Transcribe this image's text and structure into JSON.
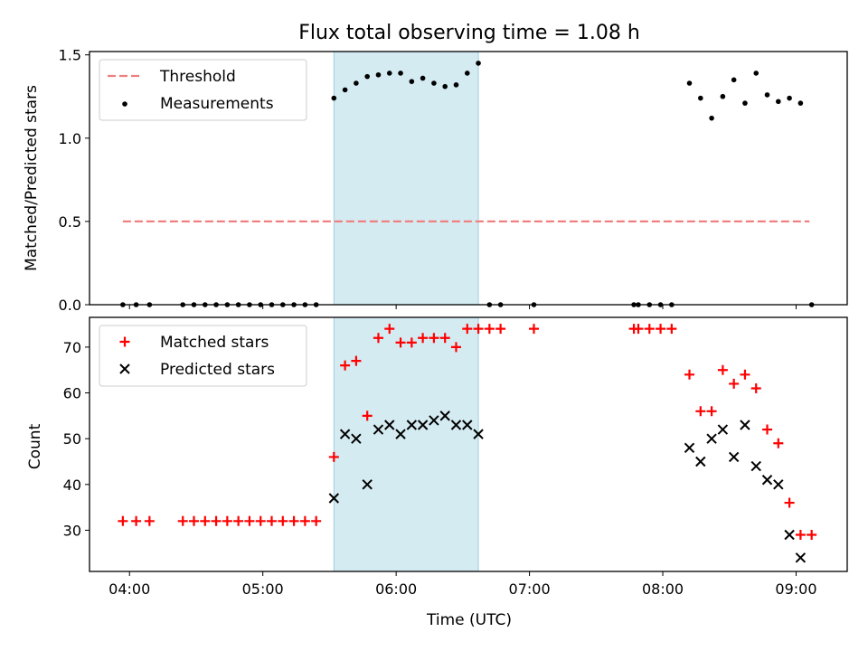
{
  "chart_data": [
    {
      "type": "scatter",
      "title": "Flux total observing time = 1.08 h",
      "xlabel": "",
      "ylabel": "Matched/Predicted stars",
      "xlim": [
        "03:42",
        "09:23"
      ],
      "ylim": [
        0,
        1.52
      ],
      "yticks": [
        "0.0",
        "0.5",
        "1.0",
        "1.5"
      ],
      "legend_position": "upper-left",
      "highlight_span": [
        "05:32",
        "06:37"
      ],
      "highlight_color": "#add8e6",
      "series": [
        {
          "name": "Threshold",
          "kind": "dashed-line",
          "color": "#f08080",
          "points": [
            [
              "03:57",
              0.5
            ],
            [
              "09:06",
              0.5
            ]
          ]
        },
        {
          "name": "Measurements",
          "kind": "dots",
          "color": "#000000",
          "points": [
            [
              "03:57",
              0
            ],
            [
              "04:03",
              0
            ],
            [
              "04:09",
              0
            ],
            [
              "04:24",
              0
            ],
            [
              "04:29",
              0
            ],
            [
              "04:34",
              0
            ],
            [
              "04:39",
              0
            ],
            [
              "04:44",
              0
            ],
            [
              "04:49",
              0
            ],
            [
              "04:54",
              0
            ],
            [
              "04:59",
              0
            ],
            [
              "05:04",
              0
            ],
            [
              "05:09",
              0
            ],
            [
              "05:14",
              0
            ],
            [
              "05:19",
              0
            ],
            [
              "05:24",
              0
            ],
            [
              "05:32",
              1.24
            ],
            [
              "05:37",
              1.29
            ],
            [
              "05:42",
              1.33
            ],
            [
              "05:47",
              1.37
            ],
            [
              "05:52",
              1.38
            ],
            [
              "05:57",
              1.39
            ],
            [
              "06:02",
              1.39
            ],
            [
              "06:07",
              1.34
            ],
            [
              "06:12",
              1.36
            ],
            [
              "06:17",
              1.33
            ],
            [
              "06:22",
              1.31
            ],
            [
              "06:27",
              1.32
            ],
            [
              "06:32",
              1.39
            ],
            [
              "06:37",
              1.45
            ],
            [
              "06:42",
              0
            ],
            [
              "06:47",
              0
            ],
            [
              "07:02",
              0
            ],
            [
              "07:47",
              0
            ],
            [
              "07:49",
              0
            ],
            [
              "07:54",
              0
            ],
            [
              "07:59",
              0
            ],
            [
              "08:04",
              0
            ],
            [
              "08:12",
              1.33
            ],
            [
              "08:17",
              1.24
            ],
            [
              "08:22",
              1.12
            ],
            [
              "08:27",
              1.25
            ],
            [
              "08:32",
              1.35
            ],
            [
              "08:37",
              1.21
            ],
            [
              "08:42",
              1.39
            ],
            [
              "08:47",
              1.26
            ],
            [
              "08:52",
              1.22
            ],
            [
              "08:57",
              1.24
            ],
            [
              "09:02",
              1.21
            ],
            [
              "09:07",
              0
            ]
          ]
        }
      ]
    },
    {
      "type": "scatter",
      "title": "",
      "xlabel": "Time (UTC)",
      "ylabel": "Count",
      "xlim": [
        "03:42",
        "09:23"
      ],
      "ylim": [
        21,
        76.5
      ],
      "yticks": [
        "30",
        "40",
        "50",
        "60",
        "70"
      ],
      "xticks": [
        "04:00",
        "05:00",
        "06:00",
        "07:00",
        "08:00",
        "09:00"
      ],
      "legend_position": "upper-left",
      "highlight_span": [
        "05:32",
        "06:37"
      ],
      "highlight_color": "#add8e6",
      "series": [
        {
          "name": "Matched stars",
          "marker": "plus",
          "color": "#ff0000",
          "points": [
            [
              "03:57",
              32
            ],
            [
              "04:03",
              32
            ],
            [
              "04:09",
              32
            ],
            [
              "04:24",
              32
            ],
            [
              "04:29",
              32
            ],
            [
              "04:34",
              32
            ],
            [
              "04:39",
              32
            ],
            [
              "04:44",
              32
            ],
            [
              "04:49",
              32
            ],
            [
              "04:54",
              32
            ],
            [
              "04:59",
              32
            ],
            [
              "05:04",
              32
            ],
            [
              "05:09",
              32
            ],
            [
              "05:14",
              32
            ],
            [
              "05:19",
              32
            ],
            [
              "05:24",
              32
            ],
            [
              "05:32",
              46
            ],
            [
              "05:37",
              66
            ],
            [
              "05:42",
              67
            ],
            [
              "05:47",
              55
            ],
            [
              "05:52",
              72
            ],
            [
              "05:57",
              74
            ],
            [
              "06:02",
              71
            ],
            [
              "06:07",
              71
            ],
            [
              "06:12",
              72
            ],
            [
              "06:17",
              72
            ],
            [
              "06:22",
              72
            ],
            [
              "06:27",
              70
            ],
            [
              "06:32",
              74
            ],
            [
              "06:37",
              74
            ],
            [
              "06:42",
              74
            ],
            [
              "06:47",
              74
            ],
            [
              "07:02",
              74
            ],
            [
              "07:47",
              74
            ],
            [
              "07:49",
              74
            ],
            [
              "07:54",
              74
            ],
            [
              "07:59",
              74
            ],
            [
              "08:04",
              74
            ],
            [
              "08:12",
              64
            ],
            [
              "08:17",
              56
            ],
            [
              "08:22",
              56
            ],
            [
              "08:27",
              65
            ],
            [
              "08:32",
              62
            ],
            [
              "08:37",
              64
            ],
            [
              "08:42",
              61
            ],
            [
              "08:47",
              52
            ],
            [
              "08:52",
              49
            ],
            [
              "08:57",
              36
            ],
            [
              "09:02",
              29
            ],
            [
              "09:07",
              29
            ]
          ]
        },
        {
          "name": "Predicted stars",
          "marker": "x",
          "color": "#000000",
          "points": [
            [
              "05:32",
              37
            ],
            [
              "05:37",
              51
            ],
            [
              "05:42",
              50
            ],
            [
              "05:47",
              40
            ],
            [
              "05:52",
              52
            ],
            [
              "05:57",
              53
            ],
            [
              "06:02",
              51
            ],
            [
              "06:07",
              53
            ],
            [
              "06:12",
              53
            ],
            [
              "06:17",
              54
            ],
            [
              "06:22",
              55
            ],
            [
              "06:27",
              53
            ],
            [
              "06:32",
              53
            ],
            [
              "06:37",
              51
            ],
            [
              "08:12",
              48
            ],
            [
              "08:17",
              45
            ],
            [
              "08:22",
              50
            ],
            [
              "08:27",
              52
            ],
            [
              "08:32",
              46
            ],
            [
              "08:37",
              53
            ],
            [
              "08:42",
              44
            ],
            [
              "08:47",
              41
            ],
            [
              "08:52",
              40
            ],
            [
              "08:57",
              29
            ],
            [
              "09:02",
              24
            ]
          ]
        }
      ]
    }
  ]
}
